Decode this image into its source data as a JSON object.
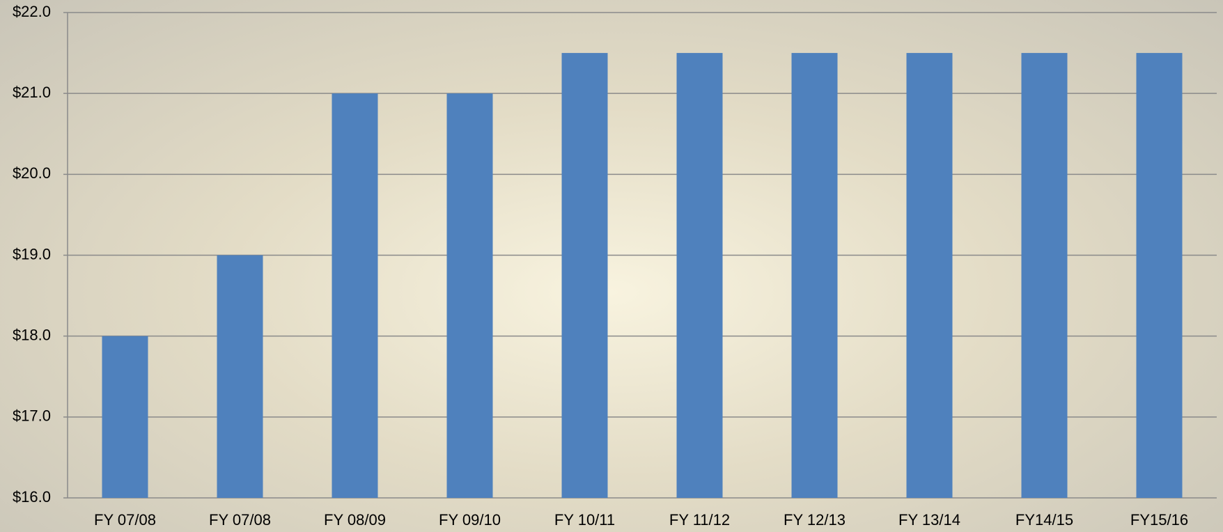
{
  "chart_data": {
    "type": "bar",
    "categories": [
      "FY 07/08",
      "FY 07/08",
      "FY 08/09",
      "FY 09/10",
      "FY 10/11",
      "FY 11/12",
      "FY 12/13",
      "FY 13/14",
      "FY14/15",
      "FY15/16"
    ],
    "values": [
      18,
      19,
      21,
      21,
      21.5,
      21.5,
      21.5,
      21.5,
      21.5,
      21.5
    ],
    "color": "#4f81bd",
    "ylim": [
      16,
      22
    ],
    "yticks": [
      {
        "value": 16,
        "label": "$16.0"
      },
      {
        "value": 17,
        "label": "$17.0"
      },
      {
        "value": 18,
        "label": "$18.0"
      },
      {
        "value": 19,
        "label": "$19.0"
      },
      {
        "value": 20,
        "label": "$20.0"
      },
      {
        "value": 21,
        "label": "$21.0"
      },
      {
        "value": 22,
        "label": "$22.0"
      }
    ],
    "grid": true
  }
}
